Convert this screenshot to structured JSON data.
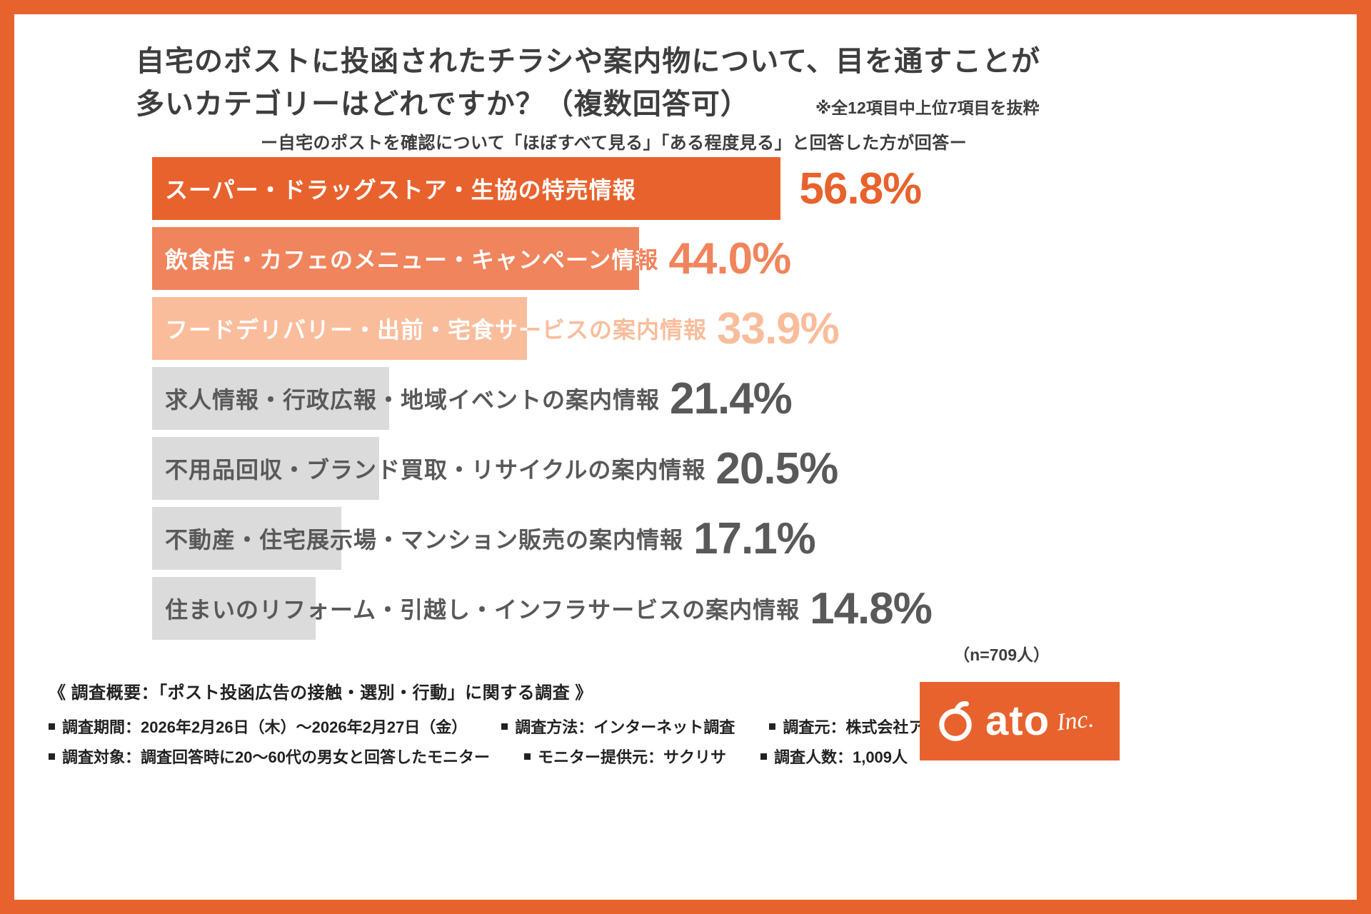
{
  "colors": {
    "primary": "#E8622D",
    "bar2": "#F0845C",
    "bar3": "#F9BD9C",
    "gray_bar": "#DBDBDB",
    "text_dark": "#3E3E3E",
    "text_gray": "#595959"
  },
  "header": {
    "title_line1": "自宅のポストに投函されたチラシや案内物について、目を通すことが",
    "title_line2": "多いカテゴリーはどれですか？（複数回答可）",
    "note": "※全12項目中上位7項目を抜粋",
    "subtitle": "ー自宅のポストを確認について「ほぼすべて見る」「ある程度見る」と回答した方が回答ー"
  },
  "chart_data": {
    "type": "bar",
    "orientation": "horizontal",
    "title": "自宅のポストに投函されたチラシや案内物について、目を通すことが多いカテゴリーはどれですか？（複数回答可）",
    "subtitle": "ー自宅のポストを確認について「ほぼすべて見る」「ある程度見る」と回答した方が回答ー",
    "categories": [
      "スーパー・ドラッグストア・生協の特売情報",
      "飲食店・カフェのメニュー・キャンペーン情報",
      "フードデリバリー・出前・宅食サービスの案内情報",
      "求人情報・行政広報・地域イベントの案内情報",
      "不用品回収・ブランド買取・リサイクルの案内情報",
      "不動産・住宅展示場・マンション販売の案内情報",
      "住まいのリフォーム・引越し・インフラサービスの案内情報"
    ],
    "values": [
      56.8,
      44.0,
      33.9,
      21.4,
      20.5,
      17.1,
      14.8
    ],
    "value_labels": [
      "56.8%",
      "44.0%",
      "33.9%",
      "21.4%",
      "20.5%",
      "17.1%",
      "14.8%"
    ],
    "bar_colors": [
      "#E8622D",
      "#F0845C",
      "#F9BD9C",
      "#DBDBDB",
      "#DBDBDB",
      "#DBDBDB",
      "#DBDBDB"
    ],
    "label_colors": [
      "#FFFFFF",
      "#FFFFFF",
      "#FFFFFF",
      "#595959",
      "#595959",
      "#595959",
      "#595959"
    ],
    "label_overflow_colors": [
      "#FFFFFF",
      "#F0845C",
      "#F9BD9C",
      "#595959",
      "#595959",
      "#595959",
      "#595959"
    ],
    "value_label_colors": [
      "#E8622D",
      "#F0845C",
      "#F9BD9C",
      "#595959",
      "#595959",
      "#595959",
      "#595959"
    ],
    "xlabel": "",
    "ylabel": "",
    "xlim": [
      0,
      60
    ],
    "grid": false,
    "legend": false,
    "sample_note": "（n=709人）"
  },
  "footer": {
    "heading": "《 調査概要：「ポスト投函広告の接触・選別・行動」に関する調査 》",
    "row1": [
      "調査期間：2026年2月26日（木）〜2026年2月27日（金）",
      "調査方法：インターネット調査",
      "調査元：株式会社アト"
    ],
    "row2": [
      "調査対象：調査回答時に20〜60代の男女と回答したモニター",
      "モニター提供元：サクリサ",
      "調査人数：1,009人"
    ]
  },
  "logo": {
    "name": "ato",
    "suffix": "Inc."
  }
}
